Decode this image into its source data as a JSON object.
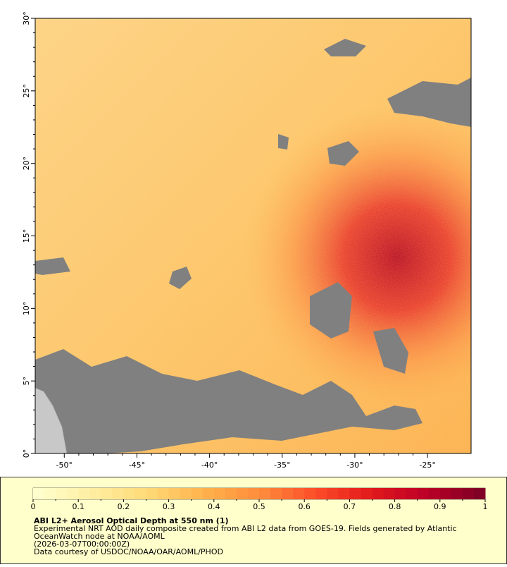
{
  "map": {
    "type": "raster",
    "xlim": [
      -52,
      -22
    ],
    "ylim": [
      0,
      30
    ],
    "xticks": [
      {
        "value": -50,
        "label": "-50°"
      },
      {
        "value": -45,
        "label": "-45°"
      },
      {
        "value": -40,
        "label": "-40°"
      },
      {
        "value": -35,
        "label": "-35°"
      },
      {
        "value": -30,
        "label": "-30°"
      },
      {
        "value": -25,
        "label": "-25°"
      }
    ],
    "yticks": [
      {
        "value": 0,
        "label": "0°"
      },
      {
        "value": 5,
        "label": "5°"
      },
      {
        "value": 10,
        "label": "10°"
      },
      {
        "value": 15,
        "label": "15°"
      },
      {
        "value": 20,
        "label": "20°"
      },
      {
        "value": 25,
        "label": "25°"
      },
      {
        "value": 30,
        "label": "30°"
      }
    ]
  },
  "colorbar": {
    "range": [
      0,
      1
    ],
    "ticks": [
      0,
      0.1,
      0.2,
      0.3,
      0.4,
      0.5,
      0.6,
      0.7,
      0.8,
      0.9,
      1
    ],
    "colors": [
      "#ffffcc",
      "#ffeda0",
      "#fed976",
      "#feb24c",
      "#fd8d3c",
      "#fc4e2a",
      "#e31a1c",
      "#bd0026",
      "#800026"
    ],
    "steps": 40
  },
  "caption": {
    "title": "ABI L2+ Aerosol Optical Depth at 550 nm (1)",
    "lines": [
      "Experimental NRT AOD daily composite created from ABI L2 data from GOES-19. Fields generated by Atlantic OceanWatch node at NOAA/AOML",
      "(2026-03-07T00:00:00Z)",
      "Data courtesy of USDOC/NOAA/OAR/AOML/PHOD"
    ]
  }
}
